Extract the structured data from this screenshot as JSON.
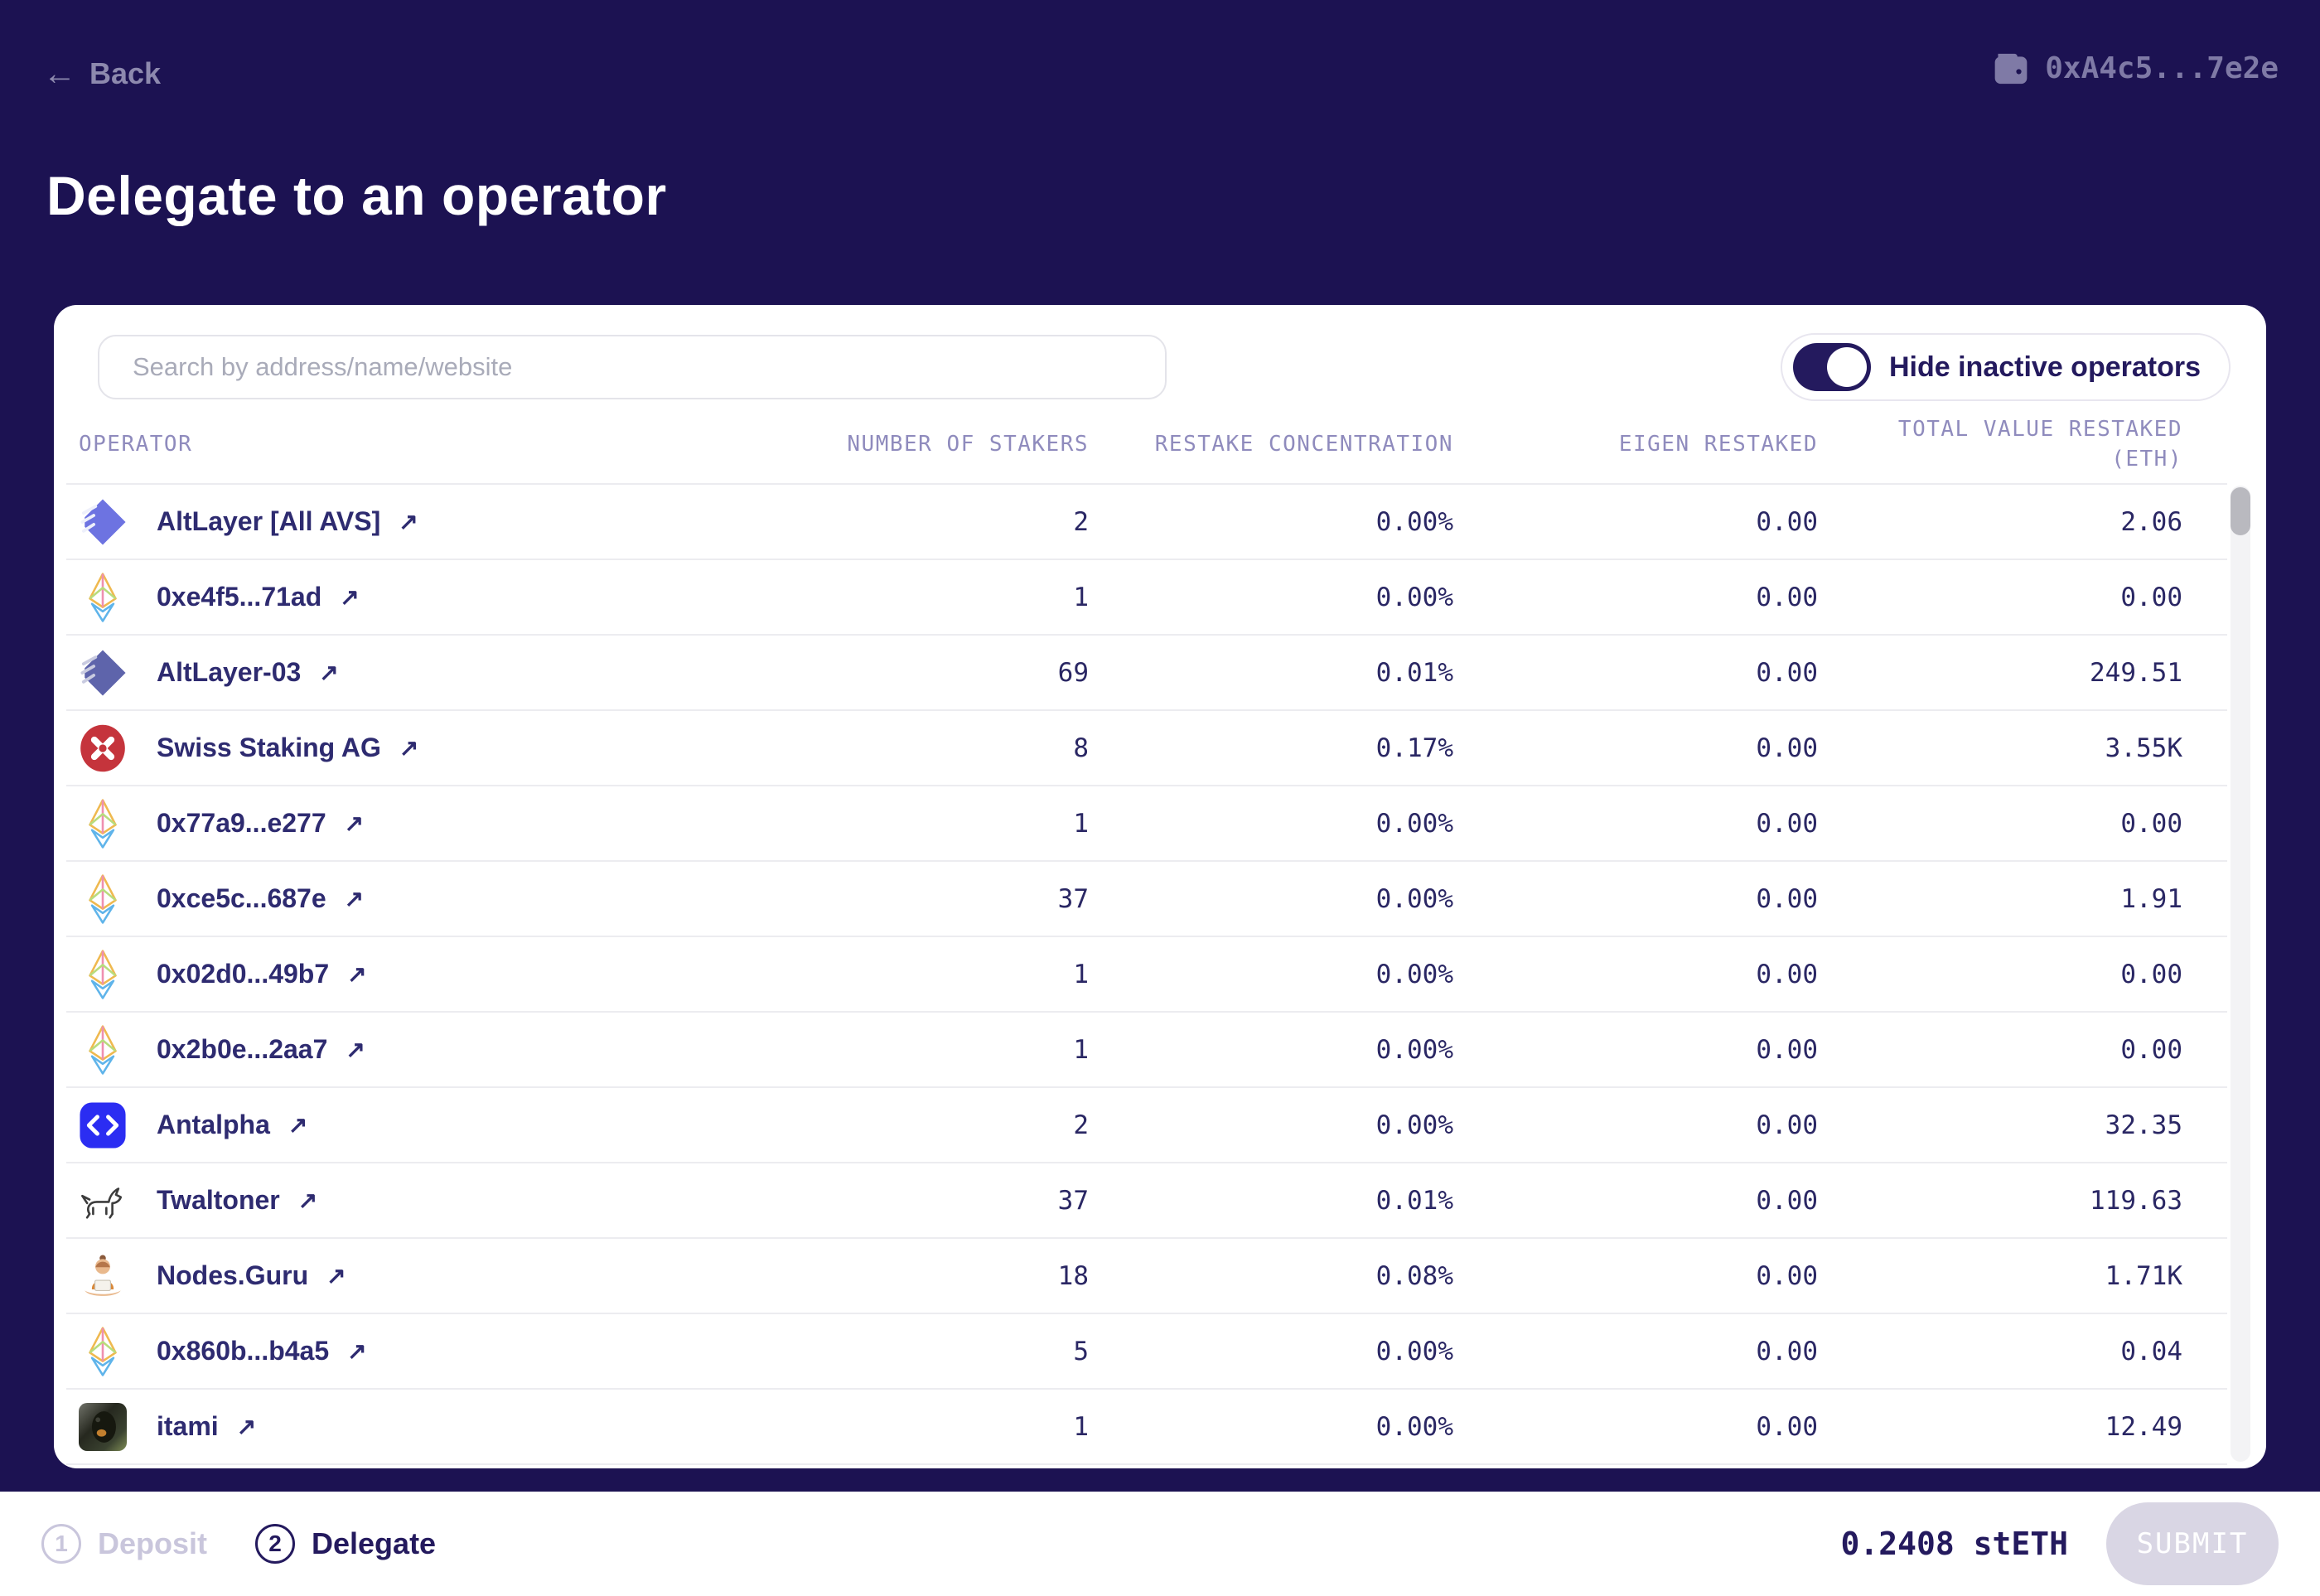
{
  "top_bar": {
    "back_label": "Back",
    "wallet_address": "0xA4c5...7e2e"
  },
  "page_title": "Delegate to an operator",
  "panel": {
    "search_placeholder": "Search by address/name/website",
    "toggle_label": "Hide inactive operators",
    "toggle_on": true
  },
  "table": {
    "columns": [
      {
        "label": "OPERATOR"
      },
      {
        "label": "NUMBER OF STAKERS"
      },
      {
        "label": "RESTAKE CONCENTRATION"
      },
      {
        "label": "EIGEN RESTAKED"
      },
      {
        "label": "TOTAL VALUE RESTAKED",
        "label2": "(ETH)"
      }
    ],
    "rows": [
      {
        "name": "AltLayer [All AVS]",
        "icon": "altlayer-logo",
        "stakers": "2",
        "restake_concentration": "0.00%",
        "eigen_restaked": "0.00",
        "total_value_restaked": "2.06"
      },
      {
        "name": "0xe4f5...71ad",
        "icon": "ethereum-logo",
        "stakers": "1",
        "restake_concentration": "0.00%",
        "eigen_restaked": "0.00",
        "total_value_restaked": "0.00"
      },
      {
        "name": "AltLayer-03",
        "icon": "altlayer-alt-logo",
        "stakers": "69",
        "restake_concentration": "0.01%",
        "eigen_restaked": "0.00",
        "total_value_restaked": "249.51"
      },
      {
        "name": "Swiss Staking AG",
        "icon": "swiss-staking-logo",
        "stakers": "8",
        "restake_concentration": "0.17%",
        "eigen_restaked": "0.00",
        "total_value_restaked": "3.55K"
      },
      {
        "name": "0x77a9...e277",
        "icon": "ethereum-logo",
        "stakers": "1",
        "restake_concentration": "0.00%",
        "eigen_restaked": "0.00",
        "total_value_restaked": "0.00"
      },
      {
        "name": "0xce5c...687e",
        "icon": "ethereum-logo",
        "stakers": "37",
        "restake_concentration": "0.00%",
        "eigen_restaked": "0.00",
        "total_value_restaked": "1.91"
      },
      {
        "name": "0x02d0...49b7",
        "icon": "ethereum-logo",
        "stakers": "1",
        "restake_concentration": "0.00%",
        "eigen_restaked": "0.00",
        "total_value_restaked": "0.00"
      },
      {
        "name": "0x2b0e...2aa7",
        "icon": "ethereum-logo",
        "stakers": "1",
        "restake_concentration": "0.00%",
        "eigen_restaked": "0.00",
        "total_value_restaked": "0.00"
      },
      {
        "name": "Antalpha",
        "icon": "antalpha-logo",
        "stakers": "2",
        "restake_concentration": "0.00%",
        "eigen_restaked": "0.00",
        "total_value_restaked": "32.35"
      },
      {
        "name": "Twaltoner",
        "icon": "twaltoner-logo",
        "stakers": "37",
        "restake_concentration": "0.01%",
        "eigen_restaked": "0.00",
        "total_value_restaked": "119.63"
      },
      {
        "name": "Nodes.Guru",
        "icon": "nodes-guru-logo",
        "stakers": "18",
        "restake_concentration": "0.08%",
        "eigen_restaked": "0.00",
        "total_value_restaked": "1.71K"
      },
      {
        "name": "0x860b...b4a5",
        "icon": "ethereum-logo",
        "stakers": "5",
        "restake_concentration": "0.00%",
        "eigen_restaked": "0.00",
        "total_value_restaked": "0.04"
      },
      {
        "name": "itami",
        "icon": "itami-avatar",
        "stakers": "1",
        "restake_concentration": "0.00%",
        "eigen_restaked": "0.00",
        "total_value_restaked": "12.49"
      }
    ]
  },
  "footer": {
    "steps": [
      {
        "number": "1",
        "label": "Deposit",
        "active": false
      },
      {
        "number": "2",
        "label": "Delegate",
        "active": true
      }
    ],
    "amount": "0.2408 stETH",
    "submit_label": "SUBMIT"
  },
  "colors": {
    "background": "#1c1252",
    "brand_navy": "#241a5e",
    "row_text": "#2e2b70",
    "header_text": "#8f8bbd"
  }
}
